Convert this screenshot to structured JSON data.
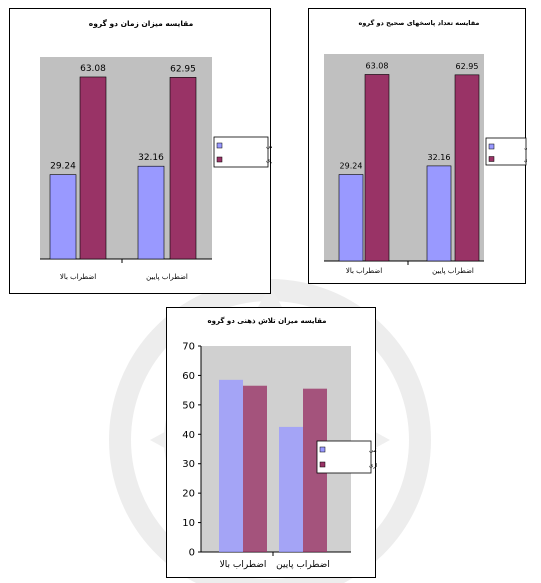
{
  "chart_data": [
    {
      "type": "bar",
      "title": "مقایسه میزان زمان دو گروه",
      "categories": [
        "اضطراب بالا",
        "اضطراب پایین"
      ],
      "series": [
        {
          "name": "تکلیف کلامی",
          "values": [
            29.24,
            32.16
          ]
        },
        {
          "name": "تکلیف دیداری",
          "values": [
            63.08,
            62.95
          ]
        }
      ],
      "data_labels": [
        [
          "29.24",
          "63.08"
        ],
        [
          "32.16",
          "62.95"
        ]
      ],
      "ylim": [
        0,
        70
      ],
      "y_axis_visible": false,
      "legend": "right",
      "plot_background": "#c0c0c0"
    },
    {
      "type": "bar",
      "title": "مقایسه تعداد پاسخهای صحیح دو گروه",
      "categories": [
        "اضطراب بالا",
        "اضطراب پایین"
      ],
      "series": [
        {
          "name": "تکلیف کلامی",
          "values": [
            29.24,
            32.16
          ]
        },
        {
          "name": "تکلیف دیداری",
          "values": [
            63.08,
            62.95
          ]
        }
      ],
      "data_labels": [
        [
          "29.24",
          "63.08"
        ],
        [
          "32.16",
          "62.95"
        ]
      ],
      "ylim": [
        0,
        70
      ],
      "y_axis_visible": false,
      "legend": "right",
      "plot_background": "#c0c0c0"
    },
    {
      "type": "bar",
      "title": "مقایسه میزان تلاش ذهنی دو گروه",
      "categories": [
        "اضطراب بالا",
        "اضطراب پایین"
      ],
      "series": [
        {
          "name": "تکلیف کلامی",
          "values": [
            58.5,
            42.5
          ]
        },
        {
          "name": "تکلیف دیداری",
          "values": [
            56.5,
            55.5
          ]
        }
      ],
      "ylim": [
        0,
        70
      ],
      "yticks": [
        "0",
        "10",
        "20",
        "30",
        "40",
        "50",
        "60",
        "70"
      ],
      "y_axis_visible": true,
      "legend": "right",
      "plot_background": "#c0c0c0"
    }
  ],
  "colors": {
    "series1": "#9999ff",
    "series2": "#993366",
    "plot_bg": "#c0c0c0",
    "watermark": "#ececec"
  }
}
